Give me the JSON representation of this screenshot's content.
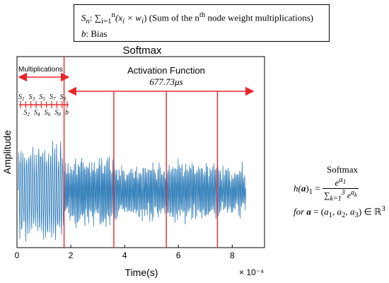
{
  "chart_data": {
    "type": "line",
    "title": "Softmax",
    "xlabel": "Time(s)",
    "ylabel": "Amplitude",
    "x_multiplier": "× 10⁻⁴",
    "xlim": [
      0,
      9.2
    ],
    "xticks": [
      0,
      2,
      4,
      6,
      8
    ],
    "grid": false,
    "series": [
      {
        "color": "#2a7ab7",
        "segments": [
          {
            "x_start": 0.05,
            "x_end": 1.75,
            "amp_min": 0.35,
            "amp_max": 0.58,
            "cycles": 23
          },
          {
            "x_start": 1.75,
            "x_end": 3.6,
            "amp_min": 0.2,
            "amp_max": 0.38,
            "cycles": 40
          },
          {
            "x_start": 3.6,
            "x_end": 5.55,
            "amp_min": 0.15,
            "amp_max": 0.3,
            "cycles": 42
          },
          {
            "x_start": 5.55,
            "x_end": 7.45,
            "amp_min": 0.18,
            "amp_max": 0.33,
            "cycles": 40
          },
          {
            "x_start": 7.45,
            "x_end": 8.5,
            "amp_min": 0.12,
            "amp_max": 0.28,
            "cycles": 22
          }
        ]
      }
    ],
    "vertical_lines": [
      {
        "x": 1.75,
        "color": "#e8262b"
      },
      {
        "x": 3.6,
        "color": "#e8262b"
      },
      {
        "x": 5.55,
        "color": "#e8262b"
      },
      {
        "x": 7.45,
        "color": "#e8262b"
      }
    ],
    "annotations": {
      "multiplications_label": "Multiplications",
      "activation_label": "Activation Function",
      "activation_time": "677.73μs",
      "s_upper": [
        "S1",
        "S3",
        "S5",
        "S7",
        "S9"
      ],
      "s_lower": [
        "S2",
        "S4",
        "S6",
        "S8",
        "b"
      ]
    }
  },
  "legend": {
    "line1_sym": "S",
    "line1_sub": "n",
    "line1_sum": ": ∑",
    "line1_sum_sub": "i=1",
    "line1_sum_sup": "n",
    "line1_expr": "(x",
    "line1_expr_sub1": "i",
    "line1_times": " × w",
    "line1_expr_sub2": "i",
    "line1_close": ")",
    "line1_text_a": " (Sum of the n",
    "line1_text_sup": "th",
    "line1_text_b": " node weight multiplications)",
    "line2_sym": "b",
    "line2_text": ": Bias"
  },
  "formula": {
    "title": "Softmax",
    "h": "h(",
    "a_bold": "a",
    "h_close": ")",
    "h_sub": "1",
    "eq": " = ",
    "num_base": "e",
    "num_sup": "a",
    "num_sup_sub": "1",
    "den_sum": "∑",
    "den_sub": "k=1",
    "den_sup": "3",
    "den_base": " e",
    "den_exp": "a",
    "den_exp_sub": "k",
    "for_text": "for ",
    "for_bold": "a",
    "for_eq": " = (",
    "tuple_a": "a",
    "tuple_1": "1",
    "tuple_sep1": ", a",
    "tuple_2": "2",
    "tuple_sep2": ", a",
    "tuple_3": "3",
    "tuple_close": ") ∈ ℝ",
    "rsup": "3"
  }
}
